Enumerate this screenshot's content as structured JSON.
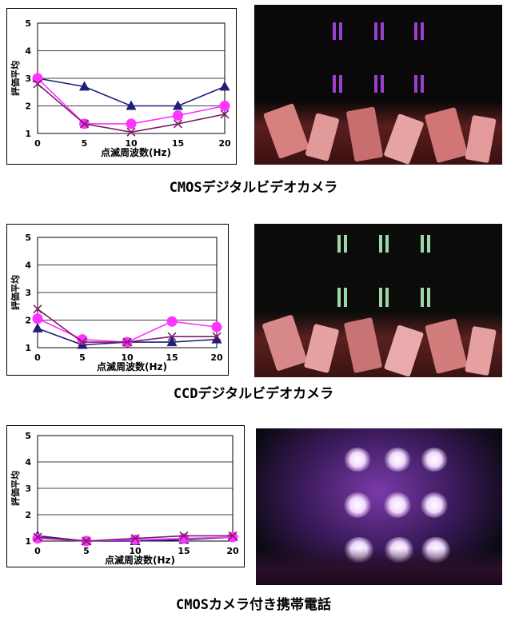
{
  "panels": [
    {
      "caption": "CMOSデジタルビデオカメラ",
      "chart_data": {
        "type": "line",
        "xlabel": "点滅周波数(Hz)",
        "ylabel": "評価平均",
        "x": [
          0,
          5,
          10,
          15,
          20
        ],
        "xticks": [
          "0",
          "5",
          "10",
          "15",
          "20"
        ],
        "yticks": [
          "1",
          "2",
          "3",
          "4",
          "5"
        ],
        "ylim": [
          1,
          5
        ],
        "grid": true,
        "series": [
          {
            "marker": "triangle",
            "color": "#1f1f7a",
            "values": [
              3.0,
              2.7,
              2.0,
              2.0,
              2.7
            ]
          },
          {
            "marker": "circle",
            "color": "#ff33ff",
            "values": [
              3.0,
              1.35,
              1.35,
              1.65,
              2.0
            ]
          },
          {
            "marker": "x",
            "color": "#7a1f6a",
            "values": [
              2.8,
              1.35,
              1.05,
              1.35,
              1.7
            ]
          }
        ]
      }
    },
    {
      "caption": "CCDデジタルビデオカメラ",
      "chart_data": {
        "type": "line",
        "xlabel": "点滅周波数(Hz)",
        "ylabel": "評価平均",
        "x": [
          0,
          5,
          10,
          15,
          20
        ],
        "xticks": [
          "0",
          "5",
          "10",
          "15",
          "20"
        ],
        "yticks": [
          "1",
          "2",
          "3",
          "4",
          "5"
        ],
        "ylim": [
          1,
          5
        ],
        "grid": true,
        "series": [
          {
            "marker": "triangle",
            "color": "#1f1f7a",
            "values": [
              1.7,
              1.1,
              1.2,
              1.2,
              1.3
            ]
          },
          {
            "marker": "circle",
            "color": "#ff33ff",
            "values": [
              2.05,
              1.3,
              1.2,
              1.95,
              1.75
            ]
          },
          {
            "marker": "x",
            "color": "#7a1f6a",
            "values": [
              2.4,
              1.2,
              1.2,
              1.4,
              1.4
            ]
          }
        ]
      }
    },
    {
      "caption": "CMOSカメラ付き携帯電話",
      "chart_data": {
        "type": "line",
        "xlabel": "点滅周波数(Hz)",
        "ylabel": "評価平均",
        "x": [
          0,
          5,
          10,
          15,
          20
        ],
        "xticks": [
          "0",
          "5",
          "10",
          "15",
          "20"
        ],
        "yticks": [
          "1",
          "2",
          "3",
          "4",
          "5"
        ],
        "ylim": [
          1,
          5
        ],
        "grid": true,
        "series": [
          {
            "marker": "triangle",
            "color": "#1f1f7a",
            "values": [
              1.2,
              1.0,
              1.0,
              1.05,
              1.15
            ]
          },
          {
            "marker": "circle",
            "color": "#ff33ff",
            "values": [
              1.1,
              1.0,
              1.05,
              1.1,
              1.15
            ]
          },
          {
            "marker": "x",
            "color": "#7a1f6a",
            "values": [
              1.15,
              1.0,
              1.1,
              1.2,
              1.2
            ]
          }
        ]
      }
    }
  ]
}
